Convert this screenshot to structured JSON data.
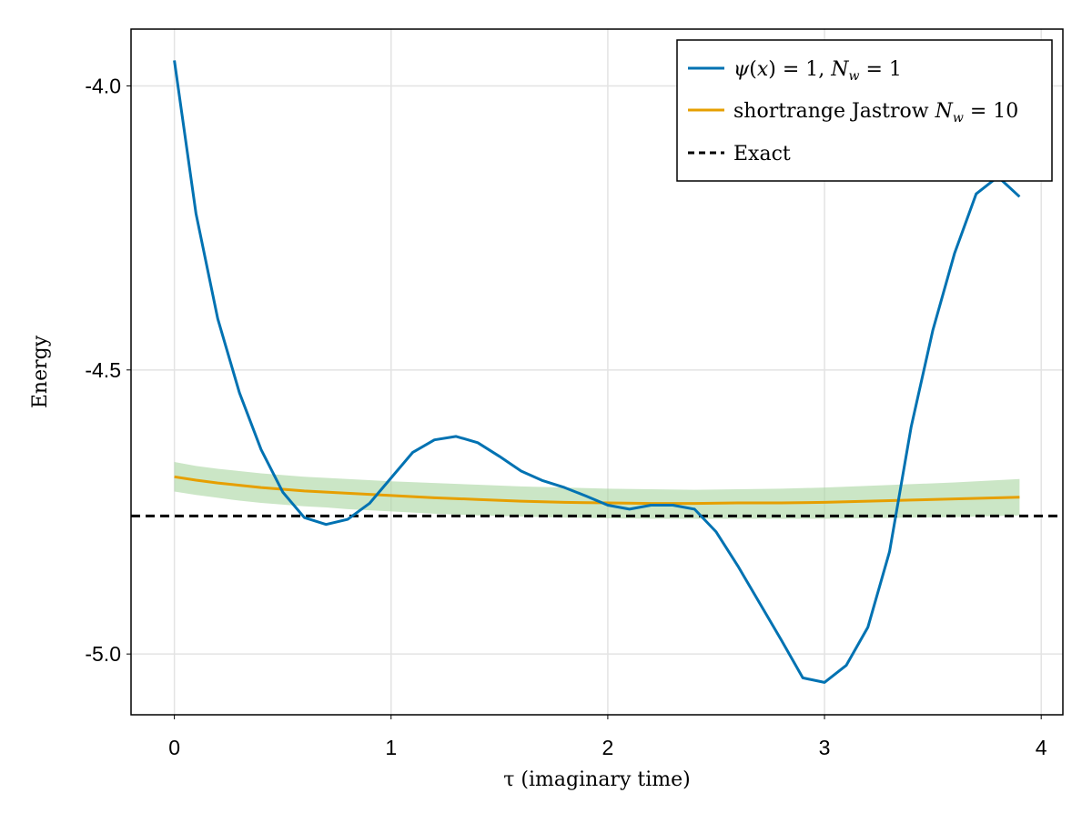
{
  "chart_data": {
    "type": "line",
    "xlabel": "τ (imaginary time)",
    "ylabel": "Energy",
    "xlim": [
      -0.2,
      4.1
    ],
    "ylim": [
      -5.107,
      -3.9
    ],
    "xticks": [
      0,
      1,
      2,
      3,
      4
    ],
    "xtick_labels": [
      "0",
      "1",
      "2",
      "3",
      "4"
    ],
    "yticks": [
      -4.0,
      -4.5,
      -5.0
    ],
    "ytick_labels": [
      "-4.0",
      "-4.5",
      "-5.0"
    ],
    "grid": true,
    "legend_position": "top-right",
    "colors": {
      "blue": "#0072b2",
      "orange": "#e69f00",
      "band": "#a8d5a0",
      "exact": "#000000",
      "grid": "#e3e3e3"
    },
    "series": [
      {
        "name": "ψ(x) = 1,  N_w = 1",
        "color": "#0072b2",
        "x": [
          0,
          0.1,
          0.2,
          0.3,
          0.4,
          0.5,
          0.6,
          0.7,
          0.8,
          0.9,
          1.0,
          1.1,
          1.2,
          1.3,
          1.4,
          1.5,
          1.6,
          1.7,
          1.8,
          1.9,
          2.0,
          2.1,
          2.2,
          2.3,
          2.4,
          2.5,
          2.6,
          2.7,
          2.8,
          2.9,
          3.0,
          3.1,
          3.2,
          3.3,
          3.4,
          3.5,
          3.6,
          3.7,
          3.8,
          3.9
        ],
        "y": [
          -3.955,
          -4.225,
          -4.41,
          -4.54,
          -4.64,
          -4.715,
          -4.76,
          -4.772,
          -4.763,
          -4.735,
          -4.69,
          -4.645,
          -4.623,
          -4.617,
          -4.628,
          -4.652,
          -4.678,
          -4.695,
          -4.707,
          -4.722,
          -4.738,
          -4.745,
          -4.738,
          -4.738,
          -4.745,
          -4.785,
          -4.845,
          -4.91,
          -4.975,
          -5.042,
          -5.05,
          -5.02,
          -4.953,
          -4.82,
          -4.6,
          -4.43,
          -4.295,
          -4.19,
          -4.16,
          -4.195
        ]
      },
      {
        "name": "shortrange Jastrow  N_w = 10",
        "color": "#e69f00",
        "x": [
          0,
          0.1,
          0.2,
          0.3,
          0.4,
          0.5,
          0.6,
          0.7,
          0.8,
          0.9,
          1.0,
          1.2,
          1.4,
          1.6,
          1.8,
          2.0,
          2.2,
          2.4,
          2.6,
          2.8,
          3.0,
          3.2,
          3.4,
          3.6,
          3.8,
          3.9
        ],
        "y": [
          -4.688,
          -4.694,
          -4.699,
          -4.703,
          -4.707,
          -4.71,
          -4.713,
          -4.715,
          -4.717,
          -4.719,
          -4.721,
          -4.725,
          -4.728,
          -4.731,
          -4.733,
          -4.734,
          -4.735,
          -4.735,
          -4.734,
          -4.734,
          -4.733,
          -4.731,
          -4.729,
          -4.727,
          -4.725,
          -4.724
        ],
        "band_lower": [
          -4.714,
          -4.72,
          -4.725,
          -4.73,
          -4.734,
          -4.737,
          -4.74,
          -4.742,
          -4.745,
          -4.747,
          -4.749,
          -4.753,
          -4.756,
          -4.758,
          -4.76,
          -4.761,
          -4.762,
          -4.762,
          -4.762,
          -4.762,
          -4.762,
          -4.761,
          -4.76,
          -4.759,
          -4.757,
          -4.756
        ],
        "band_upper": [
          -4.662,
          -4.669,
          -4.674,
          -4.678,
          -4.682,
          -4.685,
          -4.688,
          -4.69,
          -4.692,
          -4.694,
          -4.696,
          -4.699,
          -4.702,
          -4.705,
          -4.707,
          -4.709,
          -4.71,
          -4.711,
          -4.71,
          -4.709,
          -4.707,
          -4.704,
          -4.701,
          -4.698,
          -4.694,
          -4.692
        ]
      },
      {
        "name": "Exact",
        "color": "#000000",
        "style": "dashed",
        "y": -4.757
      }
    ]
  }
}
